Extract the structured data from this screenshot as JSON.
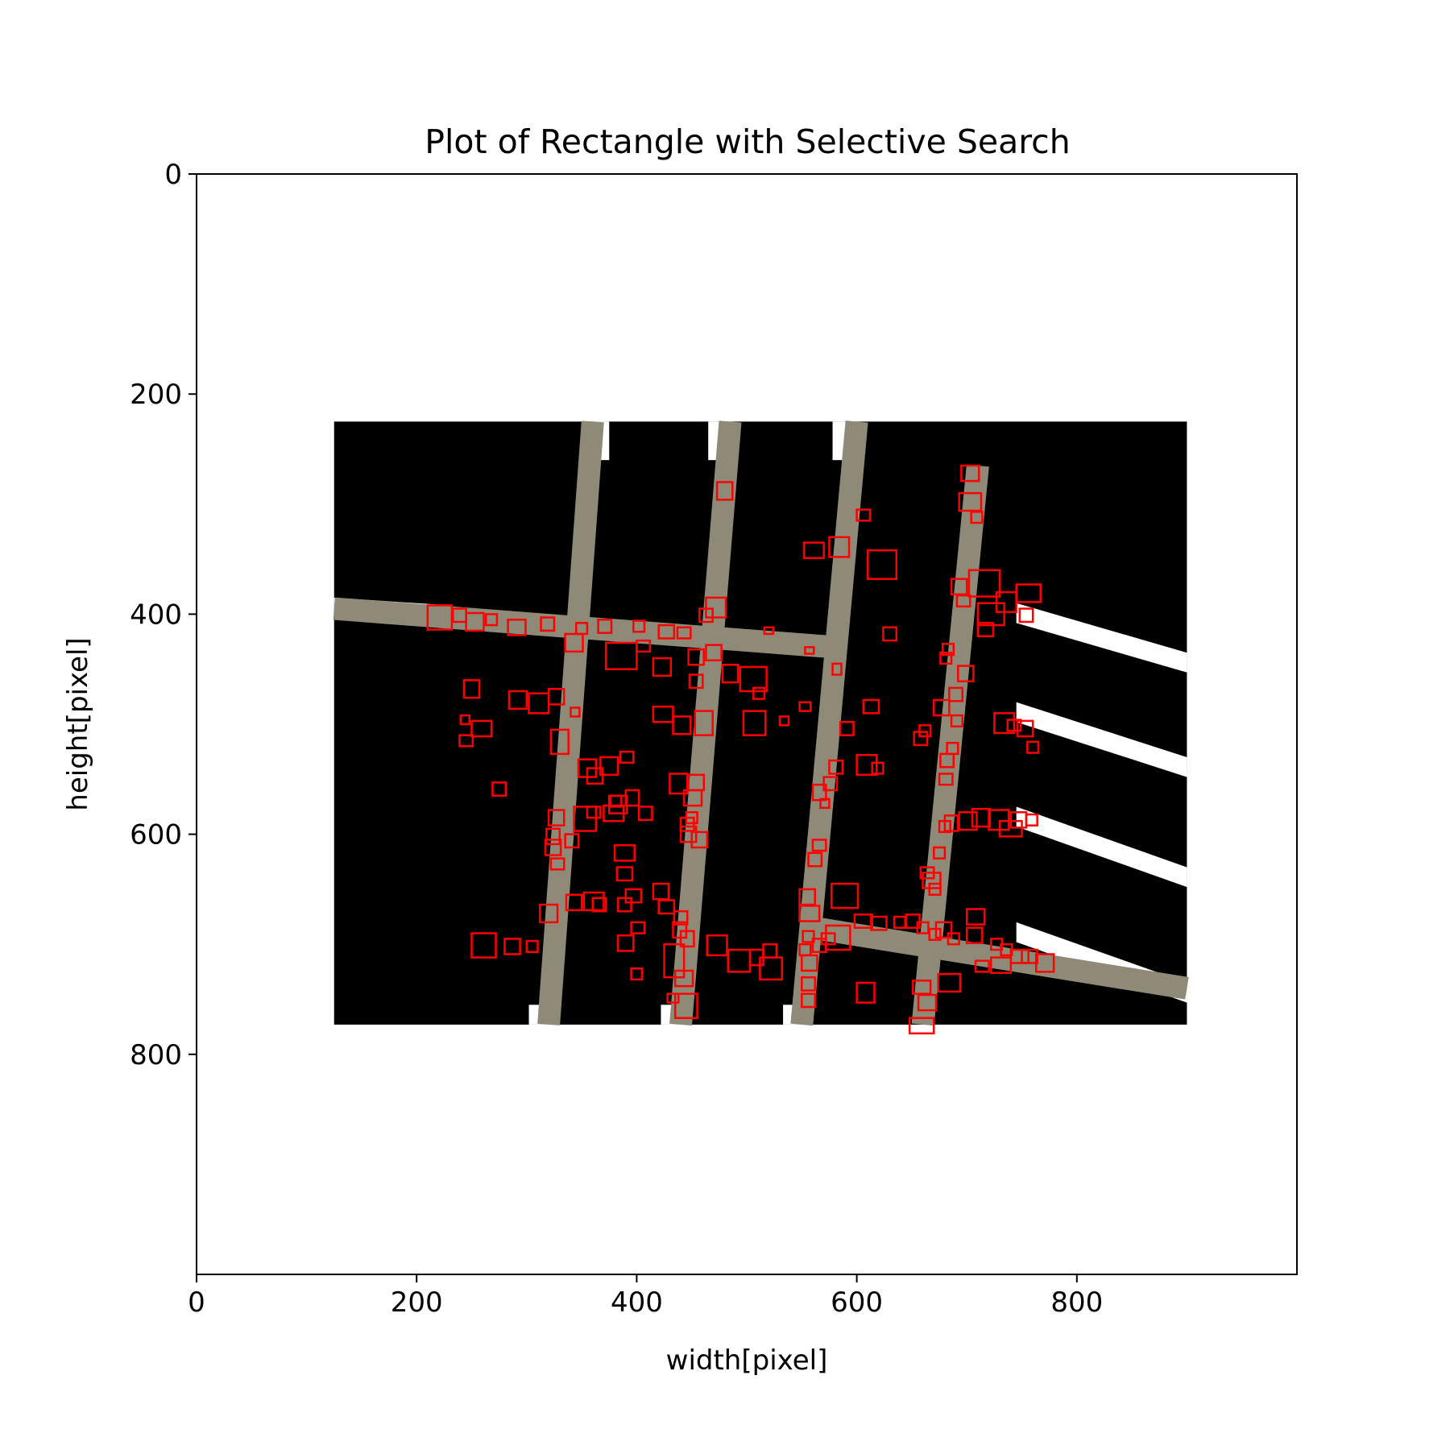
{
  "chart_data": {
    "type": "image",
    "title": "Plot of Rectangle with Selective Search",
    "xlabel": "width[pixel]",
    "ylabel": "height[pixel]",
    "xlim": [
      0,
      1000
    ],
    "ylim": [
      1000,
      0
    ],
    "xticks": [
      {
        "value": 0,
        "label": "0"
      },
      {
        "value": 200,
        "label": "200"
      },
      {
        "value": 400,
        "label": "400"
      },
      {
        "value": 600,
        "label": "600"
      },
      {
        "value": 800,
        "label": "800"
      }
    ],
    "yticks": [
      {
        "value": 0,
        "label": "0"
      },
      {
        "value": 200,
        "label": "200"
      },
      {
        "value": 400,
        "label": "400"
      },
      {
        "value": 600,
        "label": "600"
      },
      {
        "value": 800,
        "label": "800"
      }
    ],
    "image_extent": {
      "x": [
        125,
        900
      ],
      "y": [
        225,
        773
      ]
    },
    "image_description_roads": [
      {
        "name": "vertical-road-1",
        "points": [
          [
            360,
            225
          ],
          [
            320,
            773
          ]
        ]
      },
      {
        "name": "vertical-road-2",
        "points": [
          [
            485,
            225
          ],
          [
            440,
            773
          ]
        ]
      },
      {
        "name": "vertical-road-3",
        "points": [
          [
            600,
            225
          ],
          [
            550,
            773
          ]
        ]
      },
      {
        "name": "vertical-road-4",
        "points": [
          [
            710,
            265
          ],
          [
            660,
            773
          ]
        ]
      },
      {
        "name": "horizontal-road-1",
        "points": [
          [
            125,
            395
          ],
          [
            580,
            430
          ]
        ]
      },
      {
        "name": "horizontal-road-2",
        "points": [
          [
            560,
            685
          ],
          [
            900,
            740
          ]
        ]
      }
    ],
    "rect_color": "#ff0000",
    "rectangles": [
      [
        210,
        392,
        22,
        22
      ],
      [
        233,
        395,
        12,
        12
      ],
      [
        245,
        399,
        16,
        16
      ],
      [
        263,
        400,
        10,
        10
      ],
      [
        283,
        405,
        16,
        14
      ],
      [
        313,
        403,
        12,
        12
      ],
      [
        345,
        408,
        10,
        10
      ],
      [
        365,
        405,
        12,
        12
      ],
      [
        397,
        406,
        10,
        10
      ],
      [
        420,
        410,
        14,
        12
      ],
      [
        437,
        412,
        12,
        10
      ],
      [
        457,
        395,
        12,
        12
      ],
      [
        463,
        385,
        18,
        18
      ],
      [
        473,
        280,
        14,
        16
      ],
      [
        552,
        335,
        18,
        14
      ],
      [
        575,
        330,
        18,
        18
      ],
      [
        610,
        342,
        26,
        26
      ],
      [
        600,
        305,
        12,
        10
      ],
      [
        695,
        265,
        16,
        14
      ],
      [
        693,
        290,
        20,
        16
      ],
      [
        704,
        307,
        10,
        10
      ],
      [
        702,
        360,
        28,
        24
      ],
      [
        710,
        390,
        24,
        20
      ],
      [
        727,
        380,
        18,
        18
      ],
      [
        745,
        373,
        22,
        16
      ],
      [
        748,
        395,
        12,
        12
      ],
      [
        710,
        408,
        14,
        12
      ],
      [
        691,
        383,
        12,
        10
      ],
      [
        686,
        368,
        14,
        14
      ],
      [
        624,
        412,
        12,
        12
      ],
      [
        516,
        412,
        8,
        6
      ],
      [
        553,
        430,
        8,
        6
      ],
      [
        578,
        445,
        8,
        10
      ],
      [
        463,
        428,
        14,
        14
      ],
      [
        447,
        432,
        14,
        14
      ],
      [
        335,
        418,
        16,
        16
      ],
      [
        372,
        426,
        28,
        24
      ],
      [
        400,
        424,
        12,
        10
      ],
      [
        415,
        440,
        16,
        16
      ],
      [
        448,
        455,
        12,
        12
      ],
      [
        478,
        446,
        14,
        16
      ],
      [
        494,
        448,
        24,
        22
      ],
      [
        320,
        468,
        14,
        14
      ],
      [
        302,
        472,
        18,
        18
      ],
      [
        284,
        470,
        16,
        16
      ],
      [
        243,
        460,
        14,
        16
      ],
      [
        240,
        492,
        8,
        8
      ],
      [
        250,
        497,
        18,
        14
      ],
      [
        239,
        510,
        12,
        10
      ],
      [
        269,
        553,
        12,
        12
      ],
      [
        340,
        485,
        8,
        8
      ],
      [
        322,
        505,
        16,
        22
      ],
      [
        347,
        532,
        16,
        16
      ],
      [
        355,
        540,
        14,
        14
      ],
      [
        385,
        525,
        12,
        10
      ],
      [
        415,
        484,
        18,
        14
      ],
      [
        433,
        493,
        16,
        16
      ],
      [
        453,
        488,
        16,
        22
      ],
      [
        497,
        488,
        20,
        22
      ],
      [
        506,
        467,
        10,
        10
      ],
      [
        530,
        493,
        8,
        8
      ],
      [
        548,
        480,
        10,
        8
      ],
      [
        606,
        478,
        14,
        12
      ],
      [
        585,
        498,
        12,
        12
      ],
      [
        600,
        528,
        18,
        18
      ],
      [
        614,
        535,
        10,
        10
      ],
      [
        657,
        501,
        10,
        10
      ],
      [
        652,
        507,
        12,
        12
      ],
      [
        670,
        478,
        14,
        14
      ],
      [
        684,
        467,
        12,
        12
      ],
      [
        686,
        492,
        10,
        10
      ],
      [
        692,
        447,
        14,
        14
      ],
      [
        678,
        427,
        10,
        10
      ],
      [
        676,
        435,
        10,
        10
      ],
      [
        682,
        517,
        10,
        10
      ],
      [
        676,
        527,
        12,
        12
      ],
      [
        675,
        545,
        12,
        10
      ],
      [
        725,
        490,
        18,
        18
      ],
      [
        737,
        496,
        12,
        10
      ],
      [
        746,
        497,
        14,
        14
      ],
      [
        755,
        516,
        10,
        10
      ],
      [
        754,
        582,
        10,
        10
      ],
      [
        740,
        580,
        14,
        14
      ],
      [
        730,
        588,
        20,
        14
      ],
      [
        720,
        578,
        18,
        18
      ],
      [
        705,
        577,
        16,
        16
      ],
      [
        693,
        580,
        16,
        16
      ],
      [
        680,
        583,
        12,
        14
      ],
      [
        675,
        588,
        10,
        10
      ],
      [
        670,
        612,
        10,
        10
      ],
      [
        660,
        635,
        16,
        14
      ],
      [
        666,
        645,
        10,
        10
      ],
      [
        658,
        630,
        12,
        10
      ],
      [
        575,
        533,
        12,
        12
      ],
      [
        570,
        548,
        12,
        12
      ],
      [
        560,
        555,
        12,
        14
      ],
      [
        567,
        568,
        8,
        8
      ],
      [
        560,
        605,
        12,
        10
      ],
      [
        556,
        617,
        12,
        12
      ],
      [
        548,
        650,
        14,
        14
      ],
      [
        548,
        665,
        18,
        14
      ],
      [
        577,
        645,
        24,
        22
      ],
      [
        572,
        683,
        22,
        22
      ],
      [
        568,
        690,
        12,
        10
      ],
      [
        560,
        695,
        12,
        12
      ],
      [
        551,
        688,
        10,
        10
      ],
      [
        548,
        700,
        10,
        10
      ],
      [
        550,
        710,
        14,
        14
      ],
      [
        550,
        730,
        12,
        12
      ],
      [
        550,
        745,
        12,
        12
      ],
      [
        598,
        673,
        16,
        12
      ],
      [
        613,
        675,
        14,
        12
      ],
      [
        634,
        675,
        10,
        10
      ],
      [
        645,
        673,
        12,
        12
      ],
      [
        655,
        680,
        10,
        10
      ],
      [
        666,
        686,
        10,
        10
      ],
      [
        672,
        680,
        14,
        14
      ],
      [
        683,
        690,
        10,
        10
      ],
      [
        700,
        668,
        16,
        14
      ],
      [
        700,
        685,
        14,
        14
      ],
      [
        722,
        695,
        10,
        10
      ],
      [
        731,
        700,
        10,
        10
      ],
      [
        740,
        705,
        16,
        12
      ],
      [
        750,
        705,
        14,
        12
      ],
      [
        763,
        709,
        16,
        16
      ],
      [
        722,
        712,
        18,
        14
      ],
      [
        708,
        715,
        12,
        10
      ],
      [
        674,
        727,
        20,
        16
      ],
      [
        651,
        733,
        16,
        12
      ],
      [
        656,
        746,
        16,
        14
      ],
      [
        648,
        767,
        22,
        14
      ],
      [
        600,
        735,
        16,
        18
      ],
      [
        515,
        700,
        12,
        12
      ],
      [
        512,
        712,
        20,
        20
      ],
      [
        503,
        705,
        12,
        14
      ],
      [
        483,
        705,
        20,
        20
      ],
      [
        464,
        692,
        18,
        18
      ],
      [
        435,
        724,
        16,
        14
      ],
      [
        425,
        700,
        18,
        30
      ],
      [
        428,
        745,
        10,
        8
      ],
      [
        435,
        745,
        20,
        22
      ],
      [
        420,
        660,
        14,
        12
      ],
      [
        415,
        645,
        14,
        14
      ],
      [
        434,
        670,
        12,
        12
      ],
      [
        433,
        680,
        12,
        14
      ],
      [
        440,
        688,
        12,
        14
      ],
      [
        395,
        680,
        12,
        10
      ],
      [
        383,
        692,
        14,
        14
      ],
      [
        395,
        722,
        10,
        10
      ],
      [
        383,
        658,
        12,
        12
      ],
      [
        390,
        650,
        14,
        12
      ],
      [
        352,
        653,
        18,
        16
      ],
      [
        360,
        658,
        12,
        12
      ],
      [
        336,
        655,
        14,
        14
      ],
      [
        312,
        664,
        16,
        16
      ],
      [
        322,
        622,
        12,
        10
      ],
      [
        317,
        605,
        14,
        14
      ],
      [
        318,
        595,
        12,
        14
      ],
      [
        320,
        578,
        14,
        14
      ],
      [
        343,
        575,
        20,
        22
      ],
      [
        355,
        575,
        12,
        10
      ],
      [
        370,
        574,
        18,
        14
      ],
      [
        375,
        565,
        16,
        16
      ],
      [
        390,
        560,
        12,
        14
      ],
      [
        402,
        575,
        12,
        12
      ],
      [
        440,
        585,
        12,
        12
      ],
      [
        440,
        593,
        14,
        14
      ],
      [
        450,
        598,
        14,
        14
      ],
      [
        445,
        580,
        10,
        10
      ],
      [
        443,
        560,
        16,
        14
      ],
      [
        447,
        546,
        14,
        14
      ],
      [
        430,
        545,
        16,
        18
      ],
      [
        380,
        610,
        18,
        14
      ],
      [
        382,
        630,
        14,
        12
      ],
      [
        250,
        690,
        22,
        22
      ],
      [
        280,
        695,
        14,
        14
      ],
      [
        300,
        697,
        10,
        10
      ],
      [
        367,
        530,
        16,
        16
      ],
      [
        376,
        565,
        10,
        10
      ],
      [
        335,
        600,
        12,
        12
      ]
    ]
  }
}
